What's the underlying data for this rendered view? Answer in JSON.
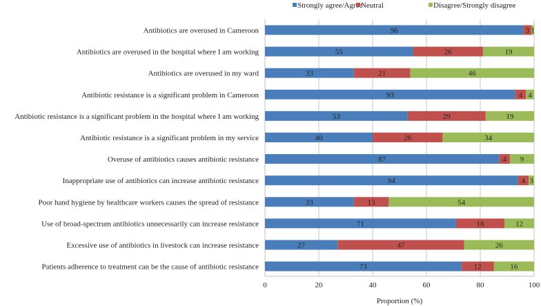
{
  "chart_data": {
    "type": "bar",
    "orientation": "horizontal",
    "stacked": true,
    "title": "",
    "xlabel": "Proportion (%)",
    "ylabel": "",
    "xlim": [
      0,
      100
    ],
    "xticks": [
      "0",
      "20",
      "40",
      "60",
      "80",
      "100"
    ],
    "grid": true,
    "legend_position": "top",
    "categories": [
      "Antibiotics are overused in Cameroon",
      "Antibiotics are overused in the hospital where I am working",
      "Antibiotics are overused in my ward",
      "Antibiotic resistance is a  significant problem in Cameroon",
      "Antibiotic resistance is a significant problem in the hospital where I am working",
      "Antibiotic resistance is a significant problem in my service",
      "Overuse of antibiotics causes antibiotic resistance",
      "Inappropriate use of antibiotics can increase antibiotic resistance",
      "Poor hand hygiene by healthcare workers causes the spread of resistance",
      "Use of broad-spectrum antibiotics unnecessarily can increase resistance",
      "Excessive use of antibiotics in livestock can increase resistance",
      "Patients adherence to treatment can be the cause of antibiotic resistance"
    ],
    "series": [
      {
        "name": "Strongly agree/Agree",
        "color": "#4a7ebb",
        "values": [
          96,
          55,
          33,
          93,
          53,
          40,
          87,
          94,
          33,
          71,
          27,
          73
        ]
      },
      {
        "name": "Neutral",
        "color": "#c0504d",
        "values": [
          3,
          26,
          21,
          4,
          29,
          26,
          4,
          4,
          13,
          18,
          47,
          12
        ]
      },
      {
        "name": "Disagree/Strongly disagree",
        "color": "#9bbb59",
        "values": [
          1,
          19,
          46,
          4,
          19,
          34,
          9,
          3,
          54,
          12,
          26,
          16
        ]
      }
    ]
  }
}
